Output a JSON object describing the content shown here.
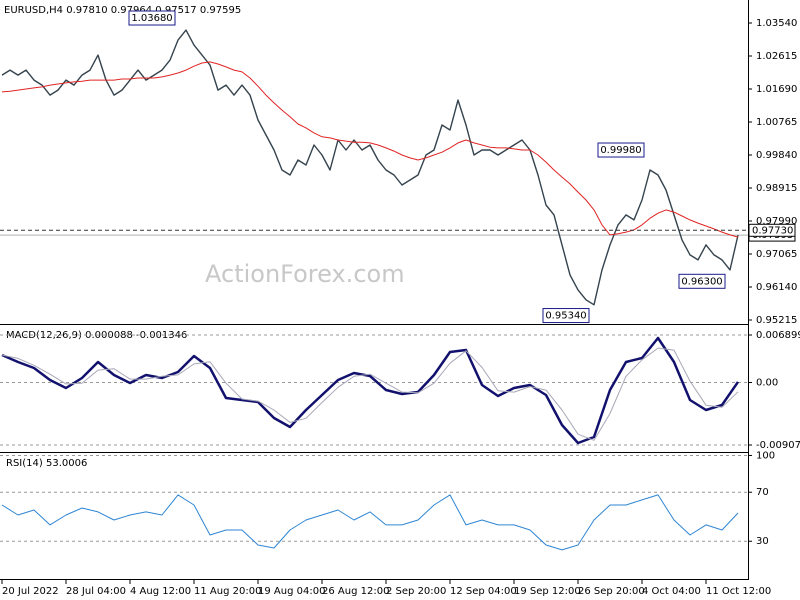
{
  "chart_data": [
    {
      "type": "line",
      "title": "EURUSD,H4",
      "ohlc": [
        {
          "value": 0.9781,
          "label": "0.97810"
        },
        {
          "value": 0.97964,
          "label": "0.97964"
        },
        {
          "value": 0.97517,
          "label": "0.97517"
        },
        {
          "value": 0.97595,
          "label": "0.97595"
        }
      ],
      "watermark": "ActionForex.com",
      "categories": [
        "20 Jul 2022",
        null,
        null,
        null,
        null,
        null,
        null,
        null,
        "28 Jul 04:00",
        null,
        null,
        null,
        null,
        null,
        null,
        null,
        "4 Aug 12:00",
        null,
        null,
        null,
        null,
        null,
        null,
        null,
        "11 Aug 20:00",
        null,
        null,
        null,
        null,
        null,
        null,
        null,
        "19 Aug 04:00",
        null,
        null,
        null,
        null,
        null,
        null,
        null,
        "26 Aug 12:00",
        null,
        null,
        null,
        null,
        null,
        null,
        null,
        "2 Sep 20:00",
        null,
        null,
        null,
        null,
        null,
        null,
        null,
        "12 Sep 04:00",
        null,
        null,
        null,
        null,
        null,
        null,
        null,
        "19 Sep 12:00",
        null,
        null,
        null,
        null,
        null,
        null,
        null,
        "26 Sep 20:00",
        null,
        null,
        null,
        null,
        null,
        null,
        null,
        "4 Oct 04:00",
        null,
        null,
        null,
        null,
        null,
        null,
        null,
        "11 Oct 12:00",
        null,
        null,
        null,
        null
      ],
      "series": [
        {
          "color": "#34434d",
          "values": [
            1.0208,
            1.0222,
            1.0208,
            1.0222,
            1.0194,
            1.018,
            1.0152,
            1.0166,
            1.0194,
            1.018,
            1.0208,
            1.0222,
            1.0264,
            1.0194,
            1.0152,
            1.0166,
            1.0194,
            1.0222,
            1.0194,
            1.0208,
            1.0222,
            1.025,
            1.0306,
            1.0334,
            1.0292,
            1.0264,
            1.0236,
            1.0166,
            1.018,
            1.0152,
            1.018,
            1.0152,
            1.0082,
            1.004,
            0.9998,
            0.9942,
            0.9928,
            0.997,
            0.9956,
            1.0012,
            0.9984,
            0.9942,
            1.0026,
            0.9998,
            1.0026,
            0.9998,
            1.0012,
            0.997,
            0.9942,
            0.9928,
            0.99,
            0.9914,
            0.9928,
            0.9984,
            0.9998,
            1.0068,
            1.0054,
            1.0138,
            1.0068,
            0.9984,
            0.9998,
            0.9998,
            0.9984,
            0.9998,
            1.0012,
            1.0026,
            0.9998,
            0.9928,
            0.9844,
            0.9816,
            0.9732,
            0.9648,
            0.9606,
            0.9578,
            0.9564,
            0.9662,
            0.9732,
            0.9788,
            0.9816,
            0.9802,
            0.9858,
            0.9942,
            0.9928,
            0.9886,
            0.9816,
            0.9746,
            0.9704,
            0.969,
            0.9732,
            0.9704,
            0.969,
            0.9662,
            0.97595
          ]
        },
        {
          "color": "#e02424",
          "values": [
            1.0161,
            1.0163,
            1.0166,
            1.0169,
            1.0172,
            1.0175,
            1.018,
            1.0183,
            1.0186,
            1.0189,
            1.0191,
            1.0194,
            1.0194,
            1.0194,
            1.0194,
            1.0197,
            1.0197,
            1.02,
            1.02,
            1.02,
            1.0203,
            1.0208,
            1.0214,
            1.0222,
            1.0233,
            1.0242,
            1.0245,
            1.0239,
            1.0231,
            1.0222,
            1.0217,
            1.02,
            1.0177,
            1.0152,
            1.013,
            1.011,
            1.0091,
            1.0071,
            1.006,
            1.0046,
            1.0035,
            1.0032,
            1.0026,
            1.0023,
            1.002,
            1.002,
            1.0018,
            1.0012,
            1.0004,
            0.9995,
            0.9984,
            0.9976,
            0.997,
            0.9976,
            0.9984,
            0.9992,
            1.0004,
            1.0018,
            1.0026,
            1.0018,
            1.0012,
            1.0006,
            1.0004,
            1.0004,
            1.0001,
            0.9998,
            0.9998,
            0.9984,
            0.9964,
            0.9942,
            0.9922,
            0.9903,
            0.988,
            0.9858,
            0.983,
            0.9788,
            0.976,
            0.9763,
            0.9768,
            0.9774,
            0.9788,
            0.9807,
            0.9821,
            0.983,
            0.9824,
            0.9813,
            0.9802,
            0.9793,
            0.9785,
            0.9777,
            0.9768,
            0.976,
            0.9754
          ]
        }
      ],
      "ylim": [
        0.95131,
        1.04129
      ],
      "yticks": [
        {
          "value": 0.95215,
          "label": "0.95215"
        },
        {
          "value": 0.9614,
          "label": "0.96140"
        },
        {
          "value": 0.97065,
          "label": "0.97065"
        },
        {
          "value": 0.9799,
          "label": "0.97990"
        },
        {
          "value": 0.98915,
          "label": "0.98915"
        },
        {
          "value": 0.9984,
          "label": "0.99840"
        },
        {
          "value": 1.00765,
          "label": "1.00765"
        },
        {
          "value": 1.0169,
          "label": "1.01690"
        },
        {
          "value": 1.02615,
          "label": "1.02615"
        },
        {
          "value": 1.0354,
          "label": "1.03540"
        }
      ],
      "grid": false,
      "annotations": [
        {
          "value": 1.0368,
          "label": "1.03680"
        },
        {
          "value": 0.9998,
          "label": "0.99980"
        },
        {
          "value": 0.963,
          "label": "0.96300"
        },
        {
          "value": 0.9534,
          "label": "0.95340"
        }
      ],
      "bid_price": {
        "value": 0.97595,
        "label": "0.97595"
      },
      "current_price": {
        "value": 0.9773,
        "label": "0.97730"
      }
    },
    {
      "type": "line",
      "title": "MACD(12,26,9)",
      "series": [
        {
          "color": "#12126e",
          "values": [
            0.003993,
            0.002977,
            0.002105,
            0.000363,
            -0.000799,
            0.000653,
            0.002977,
            0.001089,
            -7.3e-05,
            0.001089,
            0.000653,
            0.001525,
            0.003848,
            0.002105,
            -0.002251,
            -0.002541,
            -0.002831,
            -0.005155,
            -0.006461,
            -0.003993,
            -0.001815,
            0.000363,
            0.001379,
            0.000944,
            -0.001089,
            -0.00167,
            -0.001379,
            0.001089,
            0.004429,
            0.004719,
            -0.000363,
            -0.00196,
            -0.000799,
            -0.000363,
            -0.001815,
            -0.006171,
            -0.008785,
            -0.007913,
            -0.001089,
            0.002977,
            0.003557,
            0.006461,
            0.002977,
            -0.002541,
            -0.003993,
            -0.003267,
            8.8e-05
          ]
        },
        {
          "color": "#a8a8b8",
          "values": [
            0.004,
            0.0035,
            0.0025,
            0.0012,
            -0.0002,
            -0.0001,
            0.0018,
            0.002,
            0.0005,
            0.0005,
            0.0009,
            0.0011,
            0.0027,
            0.003,
            -0.0001,
            -0.0024,
            -0.0027,
            -0.004,
            -0.0058,
            -0.0052,
            -0.0029,
            -0.0007,
            0.0009,
            0.0012,
            -0.0001,
            -0.0014,
            -0.0015,
            -0.0001,
            0.0028,
            0.0046,
            0.0022,
            -0.0012,
            -0.0014,
            -0.0006,
            -0.0011,
            -0.004,
            -0.0075,
            -0.0084,
            -0.0045,
            0.0009,
            0.0033,
            0.005,
            0.0047,
            0.0002,
            -0.0033,
            -0.0036,
            -0.001346
          ]
        }
      ],
      "ylim": [
        -0.009947,
        0.008206
      ],
      "yticks": [
        -0.009076,
        {
          "value": 0,
          "label": "0.00"
        },
        0.006899
      ],
      "grid": true
    },
    {
      "type": "line",
      "title": "RSI(14)",
      "series": [
        {
          "color": "#2e86d4",
          "values": [
            59.6,
            51.4,
            55.5,
            43.3,
            51.4,
            57.1,
            53.9,
            47.3,
            51.4,
            53.9,
            51.4,
            67.8,
            59.6,
            35.1,
            39.2,
            39.2,
            26.9,
            24.5,
            39.2,
            47.3,
            51.4,
            55.5,
            47.3,
            53.9,
            43.3,
            43.3,
            47.3,
            59.6,
            67.8,
            43.3,
            47.3,
            43.3,
            43.3,
            39.2,
            26.9,
            22.9,
            26.9,
            47.3,
            59.6,
            59.6,
            63.7,
            67.8,
            47.3,
            35.1,
            43.3,
            39.2,
            53.0006
          ]
        }
      ],
      "ylim": [
        0,
        102
      ],
      "yticks": [
        30,
        70,
        100
      ],
      "grid": true
    }
  ]
}
